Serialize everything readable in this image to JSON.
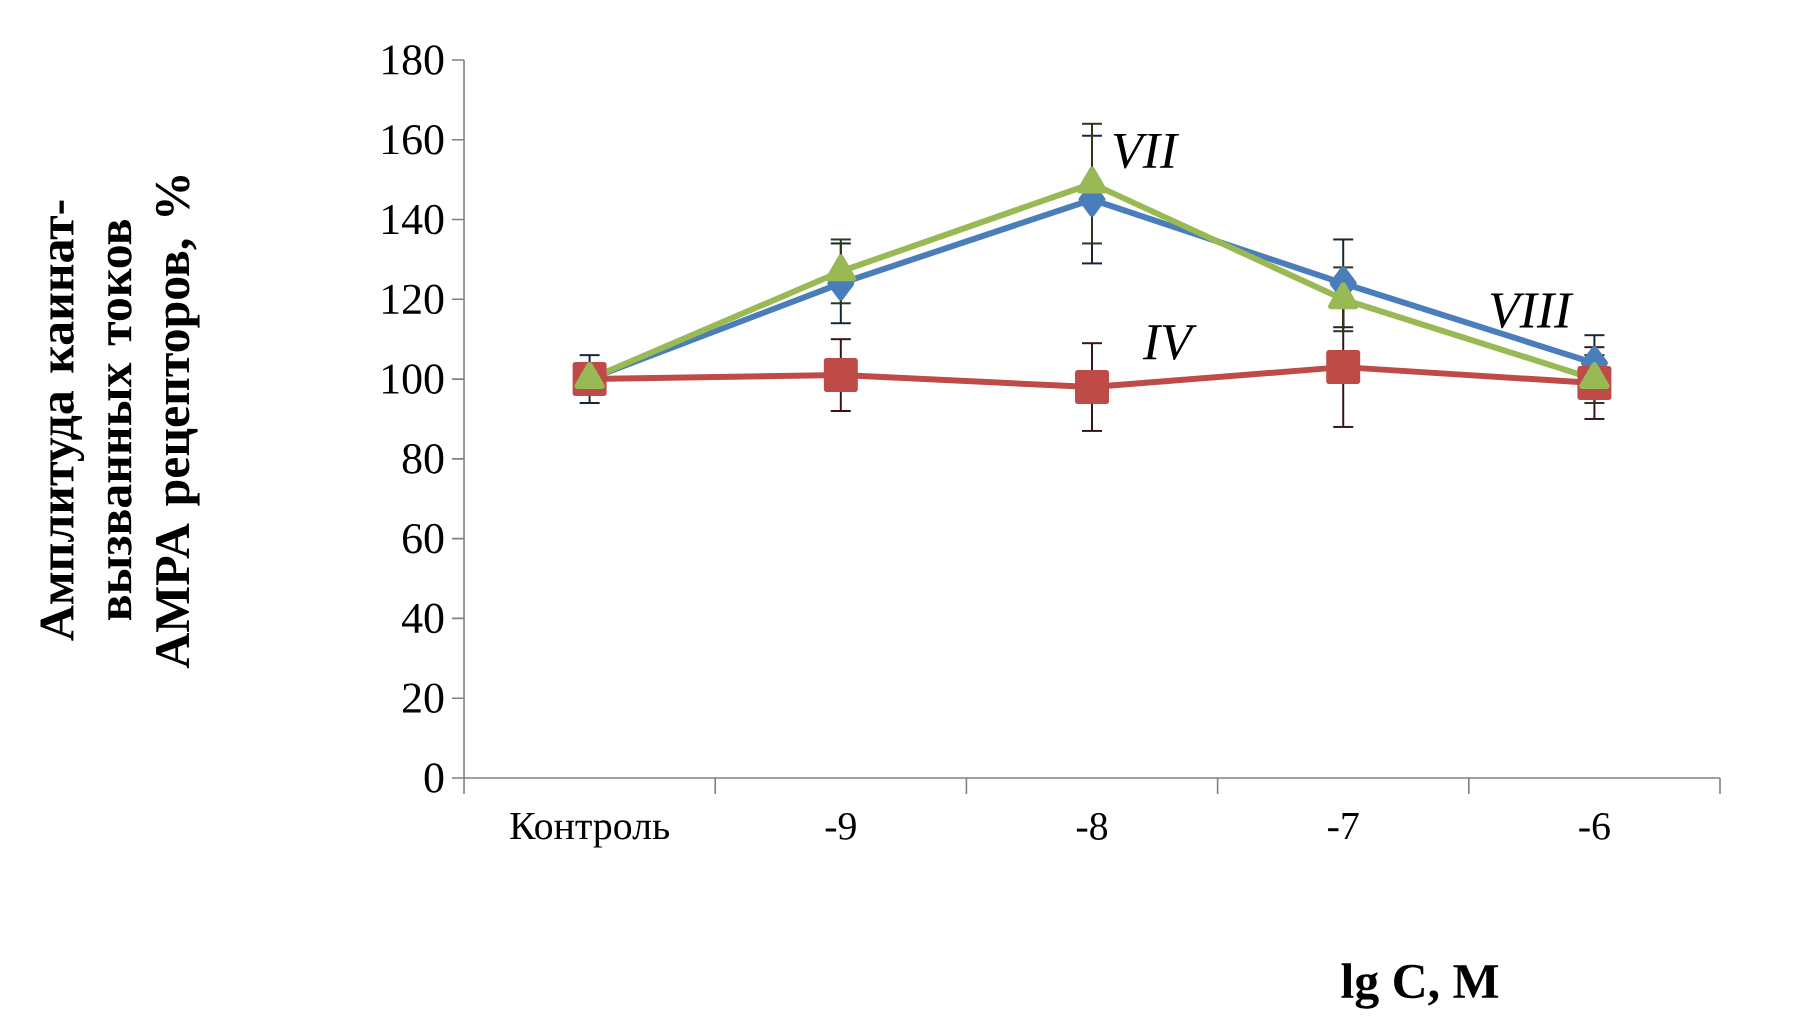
{
  "chart_data": {
    "type": "line",
    "xlabel": "lg C, M",
    "ylabel": "Амплитуда каинат-вызванных токов AMPA рецепторов, %",
    "categories": [
      "Контроль",
      "-9",
      "-8",
      "-7",
      "-6"
    ],
    "ylim": [
      0,
      180
    ],
    "yticks": [
      0,
      20,
      40,
      60,
      80,
      100,
      120,
      140,
      160,
      180
    ],
    "grid": false,
    "series": [
      {
        "name": "VIII",
        "color": "#4a7ebb",
        "marker": "diamond",
        "values": [
          100,
          124,
          145,
          124,
          104
        ],
        "errors": [
          6,
          10,
          16,
          11,
          7
        ]
      },
      {
        "name": "IV",
        "color": "#be4b48",
        "marker": "square",
        "values": [
          100,
          101,
          98,
          103,
          99
        ],
        "errors": [
          null,
          9,
          11,
          15,
          9
        ]
      },
      {
        "name": "VII",
        "color": "#98b954",
        "marker": "triangle",
        "values": [
          100,
          127,
          149,
          120,
          100
        ],
        "errors": [
          null,
          8,
          15,
          8,
          6
        ]
      }
    ]
  }
}
